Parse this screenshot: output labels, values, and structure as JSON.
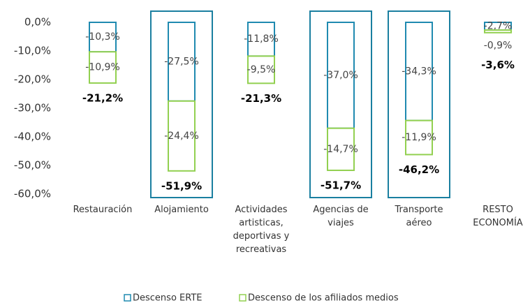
{
  "chart_data": {
    "type": "stacked-bar",
    "categories": [
      [
        "Restauración"
      ],
      [
        "Alojamiento"
      ],
      [
        "Actividades",
        "artisticas,",
        "deportivas y",
        "recreativas"
      ],
      [
        "Agencias de",
        "viajes"
      ],
      [
        "Transporte",
        "aéreo"
      ],
      [
        "RESTO",
        "ECONOMÍA"
      ]
    ],
    "series": [
      {
        "name": "Descenso ERTE",
        "color": "#1f8ab0",
        "values": [
          -10.3,
          -27.5,
          -11.8,
          -37.0,
          -34.3,
          -2.7
        ],
        "value_labels": [
          "-10,3%",
          "-27,5%",
          "-11,8%",
          "-37,0%",
          "-34,3%",
          "-2,7%"
        ]
      },
      {
        "name": "Descenso de los afiliados medios",
        "color": "#92d050",
        "values": [
          -10.9,
          -24.4,
          -9.5,
          -14.7,
          -11.9,
          -0.9
        ],
        "value_labels": [
          "-10,9%",
          "-24,4%",
          "-9,5%",
          "-14,7%",
          "-11,9%",
          "-0,9%"
        ]
      }
    ],
    "totals": {
      "values": [
        -21.2,
        -51.9,
        -21.3,
        -51.7,
        -46.2,
        -3.6
      ],
      "value_labels": [
        "-21,2%",
        "-51,9%",
        "-21,3%",
        "-51,7%",
        "-46,2%",
        "-3,6%"
      ]
    },
    "highlighted": [
      false,
      true,
      false,
      true,
      true,
      false
    ],
    "highlight_color": "#1a7fa0",
    "ylim": [
      -60,
      0
    ],
    "yticks": [
      {
        "value": 0,
        "label": "0,0%"
      },
      {
        "value": -10,
        "label": "-10,0%"
      },
      {
        "value": -20,
        "label": "-20,0%"
      },
      {
        "value": -30,
        "label": "-30,0%"
      },
      {
        "value": -40,
        "label": "-40,0%"
      },
      {
        "value": -50,
        "label": "-50,0%"
      },
      {
        "value": -60,
        "label": "-60,0%"
      }
    ],
    "legend": "bottom"
  }
}
